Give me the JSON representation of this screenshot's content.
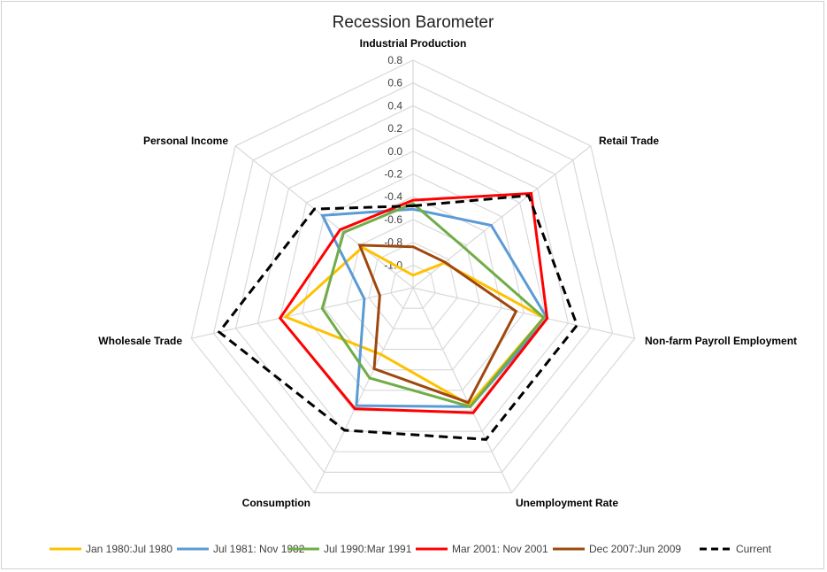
{
  "chart_data": {
    "type": "radar",
    "title": "Recession Barometer",
    "axes": [
      "Industrial Production",
      "Retail Trade",
      "Non-farm Payroll Employment",
      "Unemployment Rate",
      "Consumption",
      "Wholesale Trade",
      "Personal Income"
    ],
    "rlim": [
      -1.2,
      0.8
    ],
    "ticks": [
      -1.0,
      -0.8,
      -0.6,
      -0.4,
      -0.2,
      0.0,
      0.2,
      0.4,
      0.6,
      0.8
    ],
    "tick_labels": [
      "-1.0",
      "-0.8",
      "-0.6",
      "-0.4",
      "-0.2",
      "0.0",
      "0.2",
      "0.4",
      "0.6",
      "0.8"
    ],
    "legend_position": "bottom",
    "series": [
      {
        "name": "Jan 1980:Jul 1980",
        "color": "#FFC000",
        "dash": false,
        "values": [
          -1.09,
          -0.85,
          -0.02,
          -0.06,
          -0.55,
          -0.05,
          -0.63
        ]
      },
      {
        "name": "Jul 1981: Nov 1982",
        "color": "#5B9BD5",
        "dash": false,
        "values": [
          -0.51,
          -0.32,
          0.01,
          -0.04,
          -0.05,
          -0.76,
          -0.18
        ]
      },
      {
        "name": "Jul 1990:Mar 1991",
        "color": "#70AD47",
        "dash": false,
        "values": [
          -0.46,
          -0.63,
          -0.02,
          -0.04,
          -0.32,
          -0.38,
          -0.42
        ]
      },
      {
        "name": "Mar 2001: Nov 2001",
        "color": "#FF0000",
        "dash": false,
        "values": [
          -0.43,
          0.13,
          0.01,
          0.02,
          -0.02,
          0.0,
          -0.38
        ]
      },
      {
        "name": "Dec 2007:Jun 2009",
        "color": "#9E480E",
        "dash": false,
        "values": [
          -0.84,
          -0.84,
          -0.27,
          -0.08,
          -0.41,
          -0.9,
          -0.6
        ]
      },
      {
        "name": "Current",
        "color": "#000000",
        "dash": true,
        "values": [
          -0.48,
          0.1,
          0.28,
          0.28,
          0.19,
          0.55,
          -0.09
        ]
      }
    ]
  }
}
